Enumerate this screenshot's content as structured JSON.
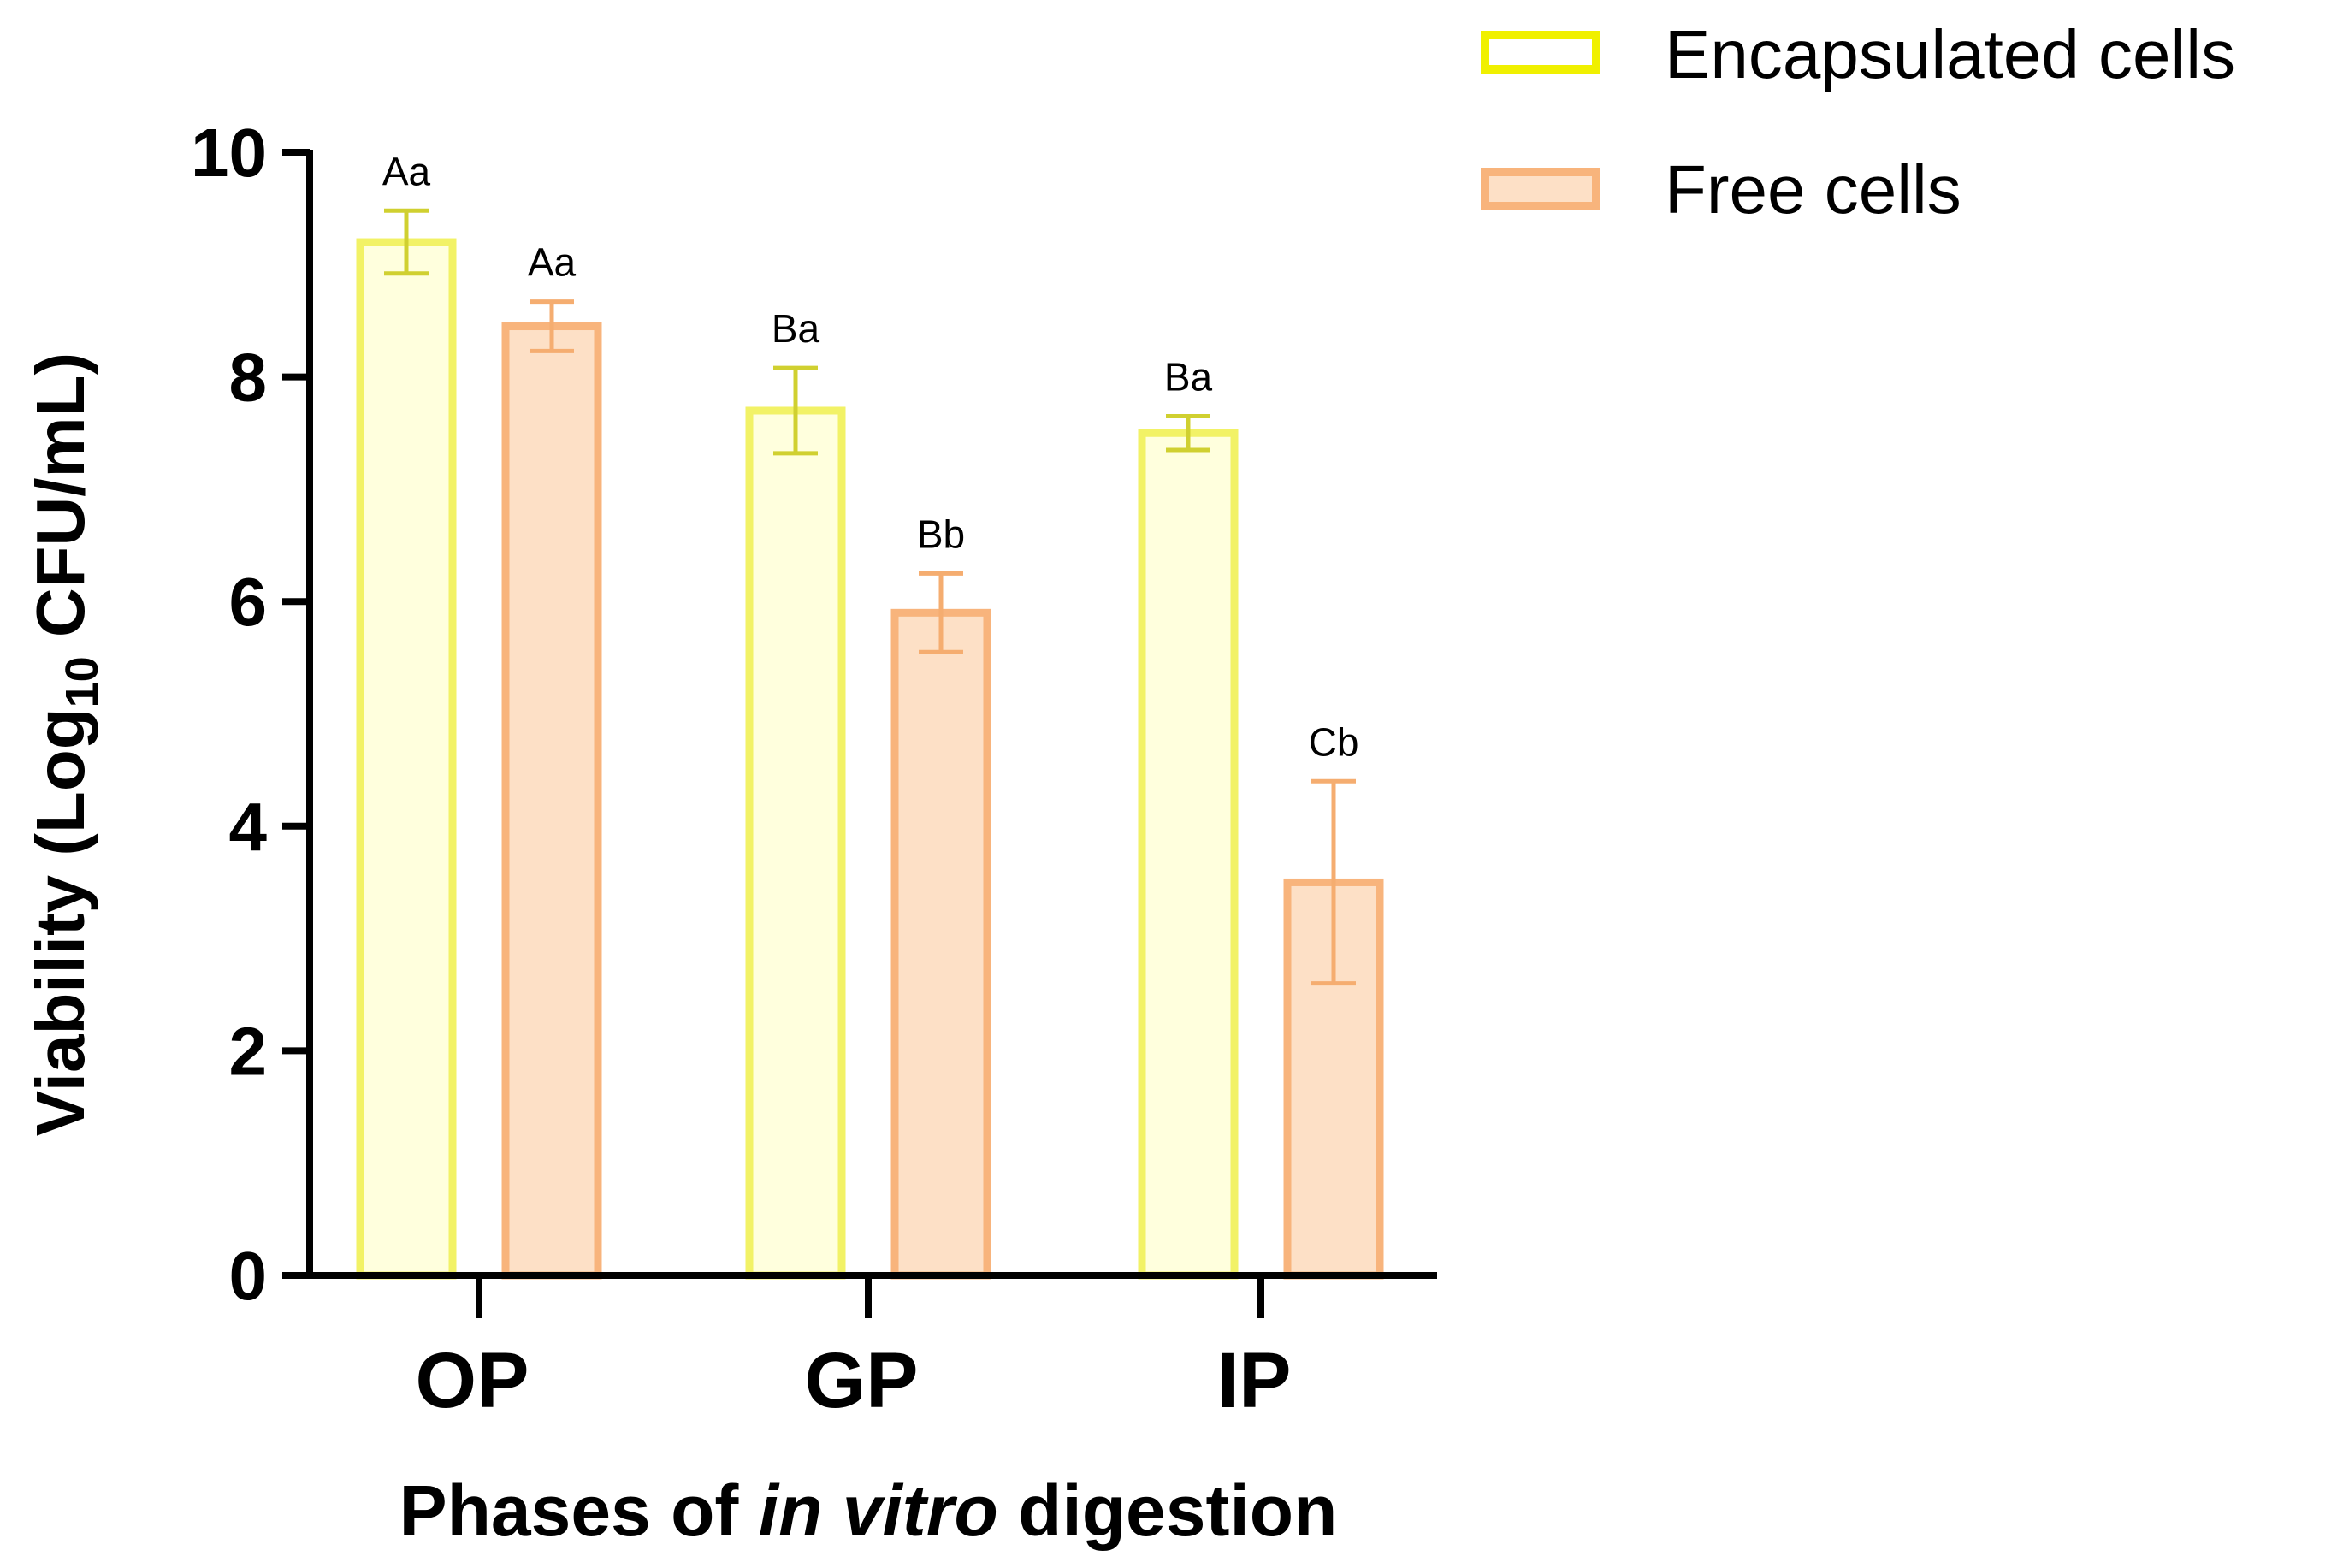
{
  "chart_data": {
    "type": "bar",
    "title": "",
    "xlabel": {
      "prefix": "Phases of ",
      "italic": "in vitro",
      "suffix": " digestion"
    },
    "ylabel": {
      "prefix": "Viability (Log",
      "subscript": "10",
      "suffix": " CFU/mL)"
    },
    "ylim": [
      0,
      10
    ],
    "yticks": [
      "0",
      "2",
      "4",
      "6",
      "8",
      "10"
    ],
    "categories": [
      "OP",
      "GP",
      "IP"
    ],
    "series": [
      {
        "name": "Encapsulated cells",
        "values": [
          9.2,
          7.7,
          7.5
        ],
        "errors": [
          0.28,
          0.38,
          0.15
        ],
        "labels": [
          "Aa",
          "Ba",
          "Ba"
        ],
        "fill": "#ffffdd",
        "stroke": "#f2f266",
        "errorColor": "#d0d030"
      },
      {
        "name": "Free cells",
        "values": [
          8.45,
          5.9,
          3.5
        ],
        "errors": [
          0.22,
          0.35,
          0.9
        ],
        "labels": [
          "Aa",
          "Bb",
          "Cb"
        ],
        "fill": "#fde0c6",
        "stroke": "#f8b47c",
        "errorColor": "#f5ad70"
      }
    ],
    "legend": "top-right"
  }
}
